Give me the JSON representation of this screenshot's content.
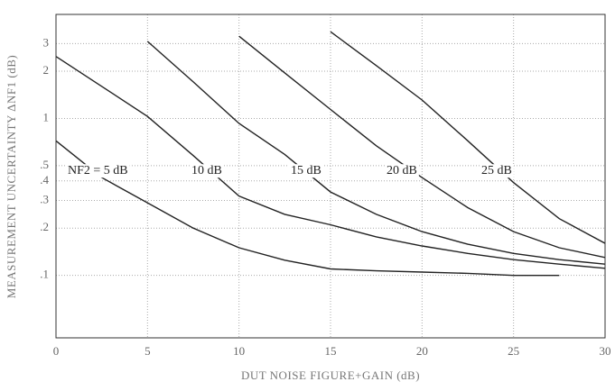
{
  "chart_data": {
    "type": "line",
    "xlabel": "DUT NOISE FIGURE+GAIN (dB)",
    "ylabel": "MEASUREMENT UNCERTAINTY ΔNF1 (dB)",
    "x": [
      0,
      2.5,
      5,
      7.5,
      10,
      12.5,
      15,
      17.5,
      20,
      22.5,
      25,
      27.5,
      30
    ],
    "series": [
      {
        "name": "NF2 = 5 dB",
        "color": "#222222",
        "values": [
          0.72,
          0.42,
          0.29,
          0.2,
          0.15,
          0.125,
          0.11,
          0.107,
          0.105,
          0.103,
          0.1,
          0.1,
          null
        ]
      },
      {
        "name": "10 dB",
        "color": "#222222",
        "values": [
          2.48,
          1.6,
          1.03,
          0.58,
          0.32,
          0.245,
          0.21,
          0.176,
          0.154,
          0.138,
          0.126,
          0.118,
          0.111
        ]
      },
      {
        "name": "15 dB",
        "color": "#222222",
        "values": [
          null,
          null,
          3.1,
          1.71,
          0.93,
          0.59,
          0.34,
          0.245,
          0.19,
          0.158,
          0.138,
          0.126,
          0.118
        ]
      },
      {
        "name": "20 dB",
        "color": "#222222",
        "values": [
          null,
          null,
          null,
          null,
          3.34,
          1.95,
          1.14,
          0.67,
          0.42,
          0.27,
          0.19,
          0.15,
          0.13
        ]
      },
      {
        "name": "25 dB",
        "color": "#222222",
        "values": [
          null,
          null,
          null,
          null,
          null,
          null,
          3.57,
          2.17,
          1.31,
          0.72,
          0.39,
          0.23,
          0.16
        ]
      }
    ],
    "xlim": [
      0,
      30
    ],
    "xticks": [
      0,
      5,
      10,
      15,
      20,
      25,
      30
    ],
    "ylim": [
      0.04,
      4.6
    ],
    "yticks": [
      3,
      2,
      1,
      {
        "value": 0.5,
        "label": ".5"
      },
      {
        "value": 0.4,
        "label": ".4"
      },
      {
        "value": 0.3,
        "label": ".3"
      },
      {
        "value": 0.2,
        "label": ".2"
      },
      {
        "value": 0.1,
        "label": ".1"
      }
    ],
    "log_y": true,
    "grid": true
  }
}
